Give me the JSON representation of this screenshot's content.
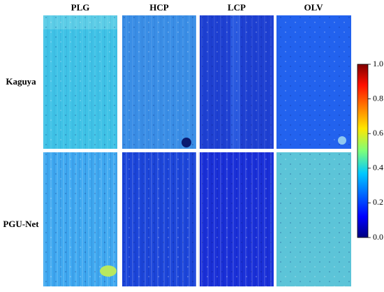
{
  "columns": [
    "PLG",
    "HCP",
    "LCP",
    "OLV"
  ],
  "rows": [
    "Kaguya",
    "PGU-Net"
  ],
  "colorbar": {
    "lim": [
      0,
      1
    ],
    "ticks": [
      {
        "value": 0,
        "label": "0.0"
      },
      0.2,
      0.4,
      0.6,
      0.8,
      {
        "value": 1,
        "label": "1.0"
      }
    ]
  }
}
